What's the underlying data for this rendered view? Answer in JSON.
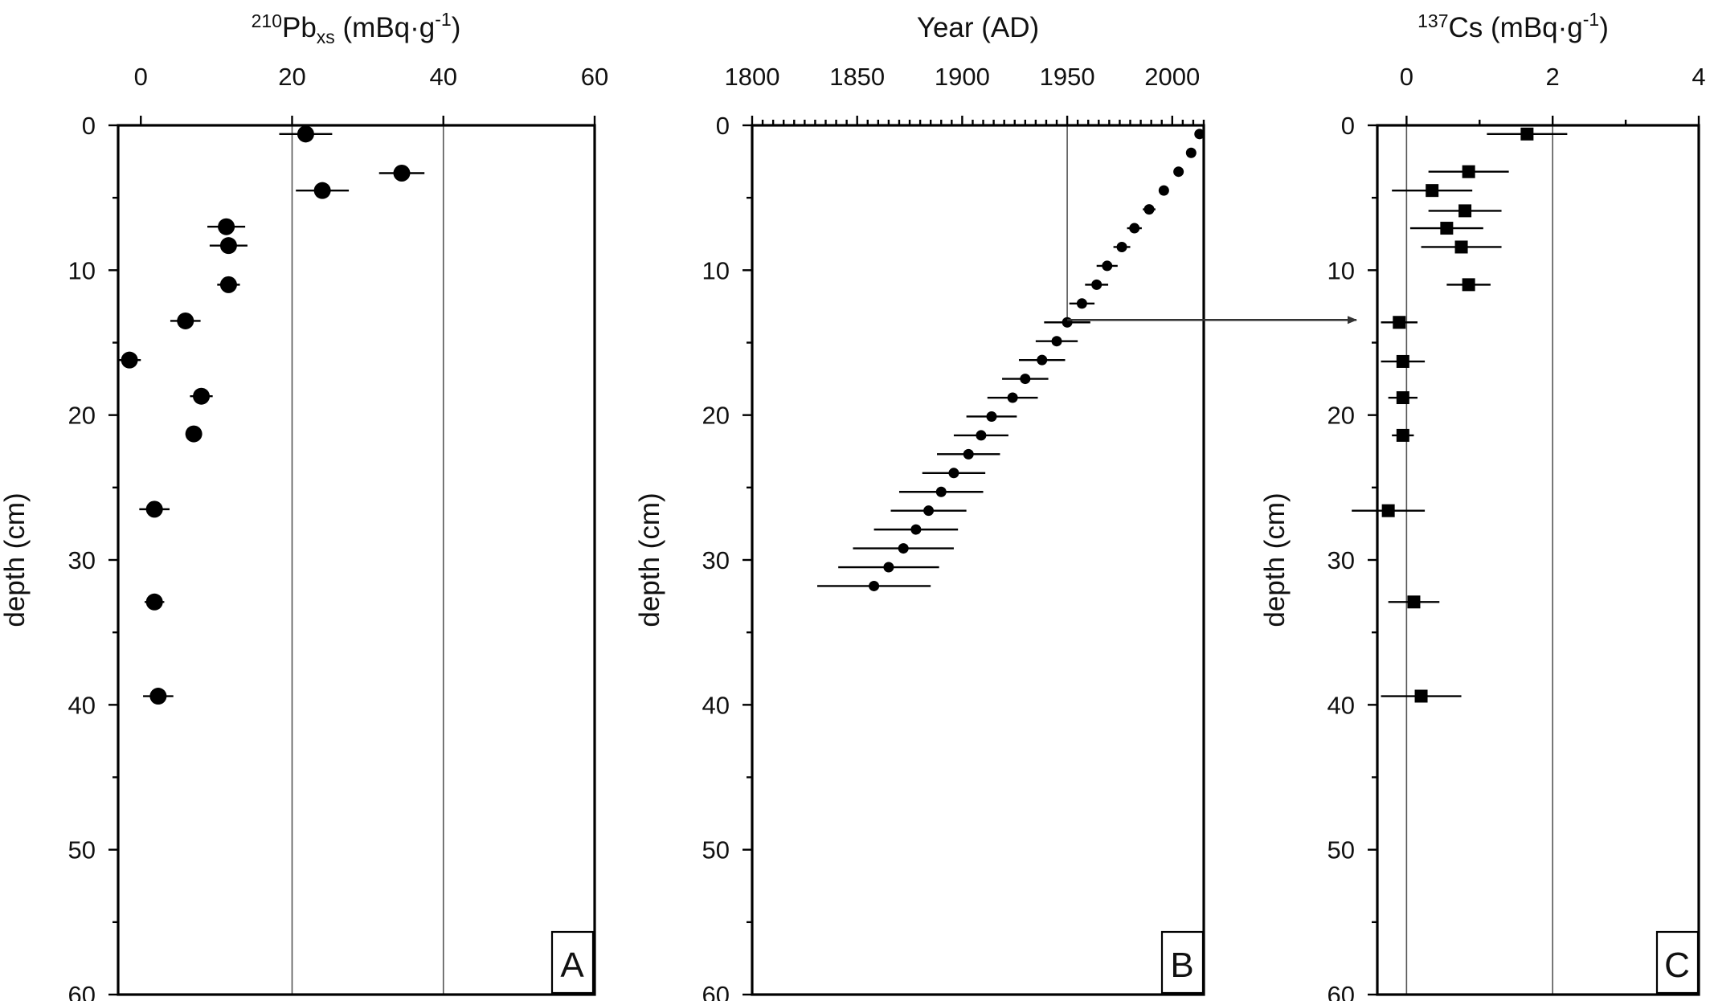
{
  "chart_data": [
    {
      "type": "scatter",
      "panel": "A",
      "title": "",
      "xlabel": "210Pbxs (mBq·g-1)",
      "xlabel_parts": {
        "sup": "210",
        "main": "Pb",
        "sub": "xs",
        "unit": " (mBq·g",
        "unit_sup": "-1",
        "close": ")"
      },
      "ylabel": "depth (cm)",
      "xlim": [
        -3,
        60
      ],
      "ylim": [
        0,
        60
      ],
      "x_ticks": [
        "0",
        "20",
        "40",
        "60"
      ],
      "y_ticks": [
        "0",
        "10",
        "20",
        "30",
        "40",
        "50",
        "60"
      ],
      "y_inverted": true,
      "reference_lines_x": [
        20,
        40
      ],
      "marker": "circle",
      "points": [
        {
          "depth": 0.6,
          "value": 21.8,
          "err": 3.5
        },
        {
          "depth": 3.3,
          "value": 34.5,
          "err": 3.0
        },
        {
          "depth": 4.5,
          "value": 24.0,
          "err": 3.5
        },
        {
          "depth": 7.0,
          "value": 11.3,
          "err": 2.5
        },
        {
          "depth": 8.3,
          "value": 11.6,
          "err": 2.5
        },
        {
          "depth": 11.0,
          "value": 11.6,
          "err": 1.5
        },
        {
          "depth": 13.5,
          "value": 5.9,
          "err": 2.0
        },
        {
          "depth": 16.2,
          "value": -1.5,
          "err": 1.5
        },
        {
          "depth": 18.7,
          "value": 8.0,
          "err": 1.5
        },
        {
          "depth": 21.3,
          "value": 7.0,
          "err": 0.8
        },
        {
          "depth": 26.5,
          "value": 1.8,
          "err": 2.0
        },
        {
          "depth": 32.9,
          "value": 1.8,
          "err": 1.3
        },
        {
          "depth": 39.4,
          "value": 2.3,
          "err": 2.0
        }
      ]
    },
    {
      "type": "scatter",
      "panel": "B",
      "title": "",
      "xlabel": "Year (AD)",
      "ylabel": "depth (cm)",
      "xlim": [
        1800,
        2015
      ],
      "ylim": [
        0,
        60
      ],
      "x_ticks": [
        "1800",
        "1850",
        "1900",
        "1950",
        "2000"
      ],
      "y_ticks": [
        "0",
        "10",
        "20",
        "30",
        "40",
        "50",
        "60"
      ],
      "y_inverted": true,
      "reference_line_x": 1950,
      "marker": "circle-small",
      "annotation": "arrow from the 1950 date at 13.5 cm depth pointing to panel C",
      "points": [
        {
          "depth": 0.6,
          "year": 2013,
          "err": 1
        },
        {
          "depth": 1.9,
          "year": 2009,
          "err": 1
        },
        {
          "depth": 3.2,
          "year": 2003,
          "err": 1.5
        },
        {
          "depth": 4.5,
          "year": 1996,
          "err": 2
        },
        {
          "depth": 5.8,
          "year": 1989,
          "err": 3
        },
        {
          "depth": 7.1,
          "year": 1982,
          "err": 3.5
        },
        {
          "depth": 8.4,
          "year": 1976,
          "err": 4
        },
        {
          "depth": 9.7,
          "year": 1969,
          "err": 5
        },
        {
          "depth": 11.0,
          "year": 1964,
          "err": 5.5
        },
        {
          "depth": 12.3,
          "year": 1957,
          "err": 6
        },
        {
          "depth": 13.6,
          "year": 1950,
          "err": 11
        },
        {
          "depth": 14.9,
          "year": 1945,
          "err": 10
        },
        {
          "depth": 16.2,
          "year": 1938,
          "err": 11
        },
        {
          "depth": 17.5,
          "year": 1930,
          "err": 11
        },
        {
          "depth": 18.8,
          "year": 1924,
          "err": 12
        },
        {
          "depth": 20.1,
          "year": 1914,
          "err": 12
        },
        {
          "depth": 21.4,
          "year": 1909,
          "err": 13
        },
        {
          "depth": 22.7,
          "year": 1903,
          "err": 15
        },
        {
          "depth": 24.0,
          "year": 1896,
          "err": 15
        },
        {
          "depth": 25.3,
          "year": 1890,
          "err": 20
        },
        {
          "depth": 26.6,
          "year": 1884,
          "err": 18
        },
        {
          "depth": 27.9,
          "year": 1878,
          "err": 20
        },
        {
          "depth": 29.2,
          "year": 1872,
          "err": 24
        },
        {
          "depth": 30.5,
          "year": 1865,
          "err": 24
        },
        {
          "depth": 31.8,
          "year": 1858,
          "err": 27
        }
      ]
    },
    {
      "type": "scatter",
      "panel": "C",
      "title": "",
      "xlabel": "137Cs (mBq·g-1)",
      "xlabel_parts": {
        "sup": "137",
        "main": "Cs",
        "sub": "",
        "unit": " (mBq·g",
        "unit_sup": "-1",
        "close": ")"
      },
      "ylabel": "depth (cm)",
      "xlim": [
        -0.4,
        4
      ],
      "ylim": [
        0,
        60
      ],
      "x_ticks": [
        "0",
        "2",
        "4"
      ],
      "y_ticks": [
        "0",
        "10",
        "20",
        "30",
        "40",
        "50",
        "60"
      ],
      "y_inverted": true,
      "reference_lines_x": [
        0,
        2
      ],
      "marker": "square",
      "points": [
        {
          "depth": 0.6,
          "value": 1.65,
          "err": 0.55
        },
        {
          "depth": 3.2,
          "value": 0.85,
          "err": 0.55
        },
        {
          "depth": 4.5,
          "value": 0.35,
          "err": 0.55
        },
        {
          "depth": 5.9,
          "value": 0.8,
          "err": 0.5
        },
        {
          "depth": 7.1,
          "value": 0.55,
          "err": 0.5
        },
        {
          "depth": 8.4,
          "value": 0.75,
          "err": 0.55
        },
        {
          "depth": 11.0,
          "value": 0.85,
          "err": 0.3
        },
        {
          "depth": 13.6,
          "value": -0.1,
          "err": 0.25
        },
        {
          "depth": 16.3,
          "value": -0.05,
          "err": 0.3
        },
        {
          "depth": 18.8,
          "value": -0.05,
          "err": 0.2
        },
        {
          "depth": 21.4,
          "value": -0.05,
          "err": 0.15
        },
        {
          "depth": 26.6,
          "value": -0.25,
          "err": 0.5
        },
        {
          "depth": 32.9,
          "value": 0.1,
          "err": 0.35
        },
        {
          "depth": 39.4,
          "value": 0.2,
          "err": 0.55
        }
      ]
    }
  ]
}
